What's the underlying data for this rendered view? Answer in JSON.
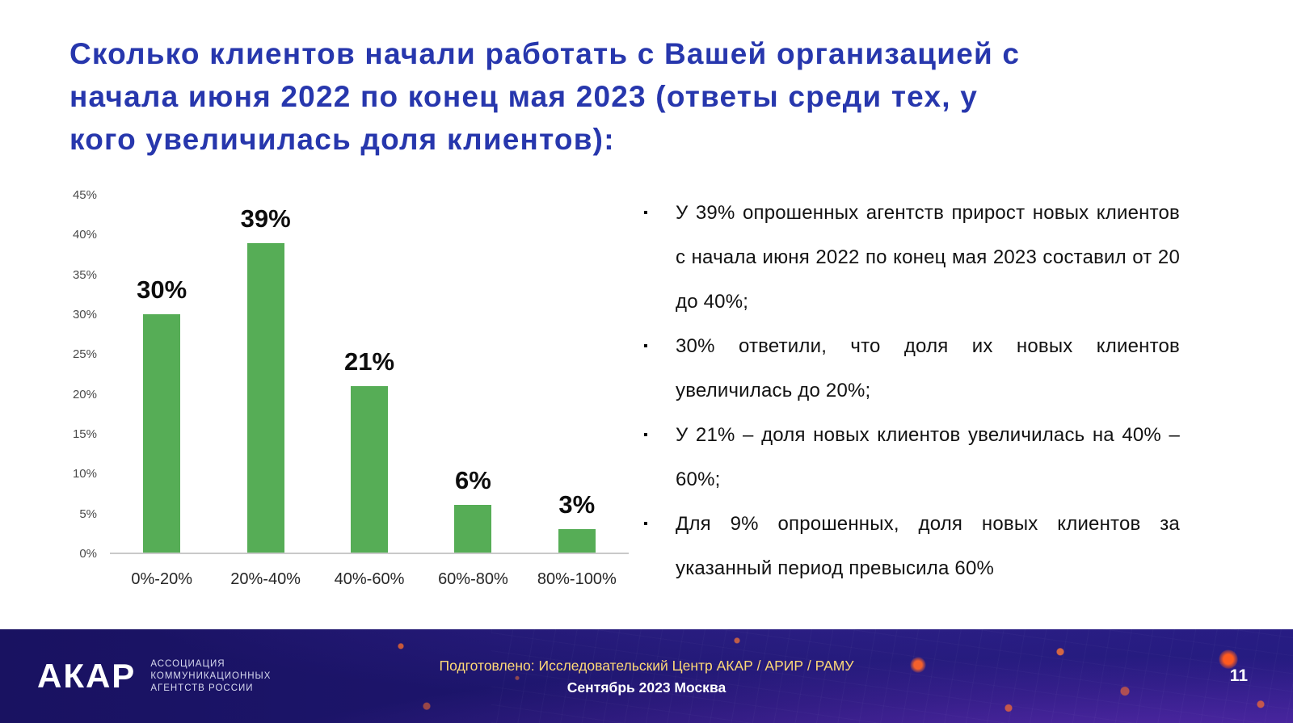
{
  "slide": {
    "title_lines": [
      "Сколько клиентов начали работать с Вашей организацией с",
      "начала июня 2022 по конец мая 2023 (ответы среди тех, у",
      "кого увеличилась доля клиентов):"
    ],
    "title_color": "#2737ad",
    "page_number": "11"
  },
  "chart_data": {
    "type": "bar",
    "categories": [
      "0%-20%",
      "20%-40%",
      "40%-60%",
      "60%-80%",
      "80%-100%"
    ],
    "values": [
      30,
      39,
      21,
      6,
      3
    ],
    "value_labels": [
      "30%",
      "39%",
      "21%",
      "6%",
      "3%"
    ],
    "title": "",
    "xlabel": "",
    "ylabel": "",
    "ylim": [
      0,
      45
    ],
    "ytick_labels": [
      "0%",
      "5%",
      "10%",
      "15%",
      "20%",
      "25%",
      "30%",
      "35%",
      "40%",
      "45%"
    ],
    "grid": false,
    "legend": false,
    "bar_color": "#56ad56"
  },
  "bullets": [
    "У 39% опрошенных агентств прирост новых клиентов с начала июня 2022 по конец мая 2023 составил от 20 до 40%;",
    "30% ответили, что доля их новых клиентов увеличилась до 20%;",
    "У 21% – доля новых клиентов увеличилась на 40% – 60%;",
    "Для 9% опрошенных, доля новых клиентов за указанный период превысила 60%"
  ],
  "footer": {
    "logo_text": "АКАР",
    "logo_sub_lines": [
      "АССОЦИАЦИЯ",
      "КОММУНИКАЦИОННЫХ",
      "АГЕНТСТВ РОССИИ"
    ],
    "prepared_by": "Подготовлено: Исследовательский Центр АКАР / АРИР / РАМУ",
    "date_place": "Сентябрь 2023 Москва",
    "background_color": "#1e1670",
    "accent_dot_color": "#ff6428"
  }
}
